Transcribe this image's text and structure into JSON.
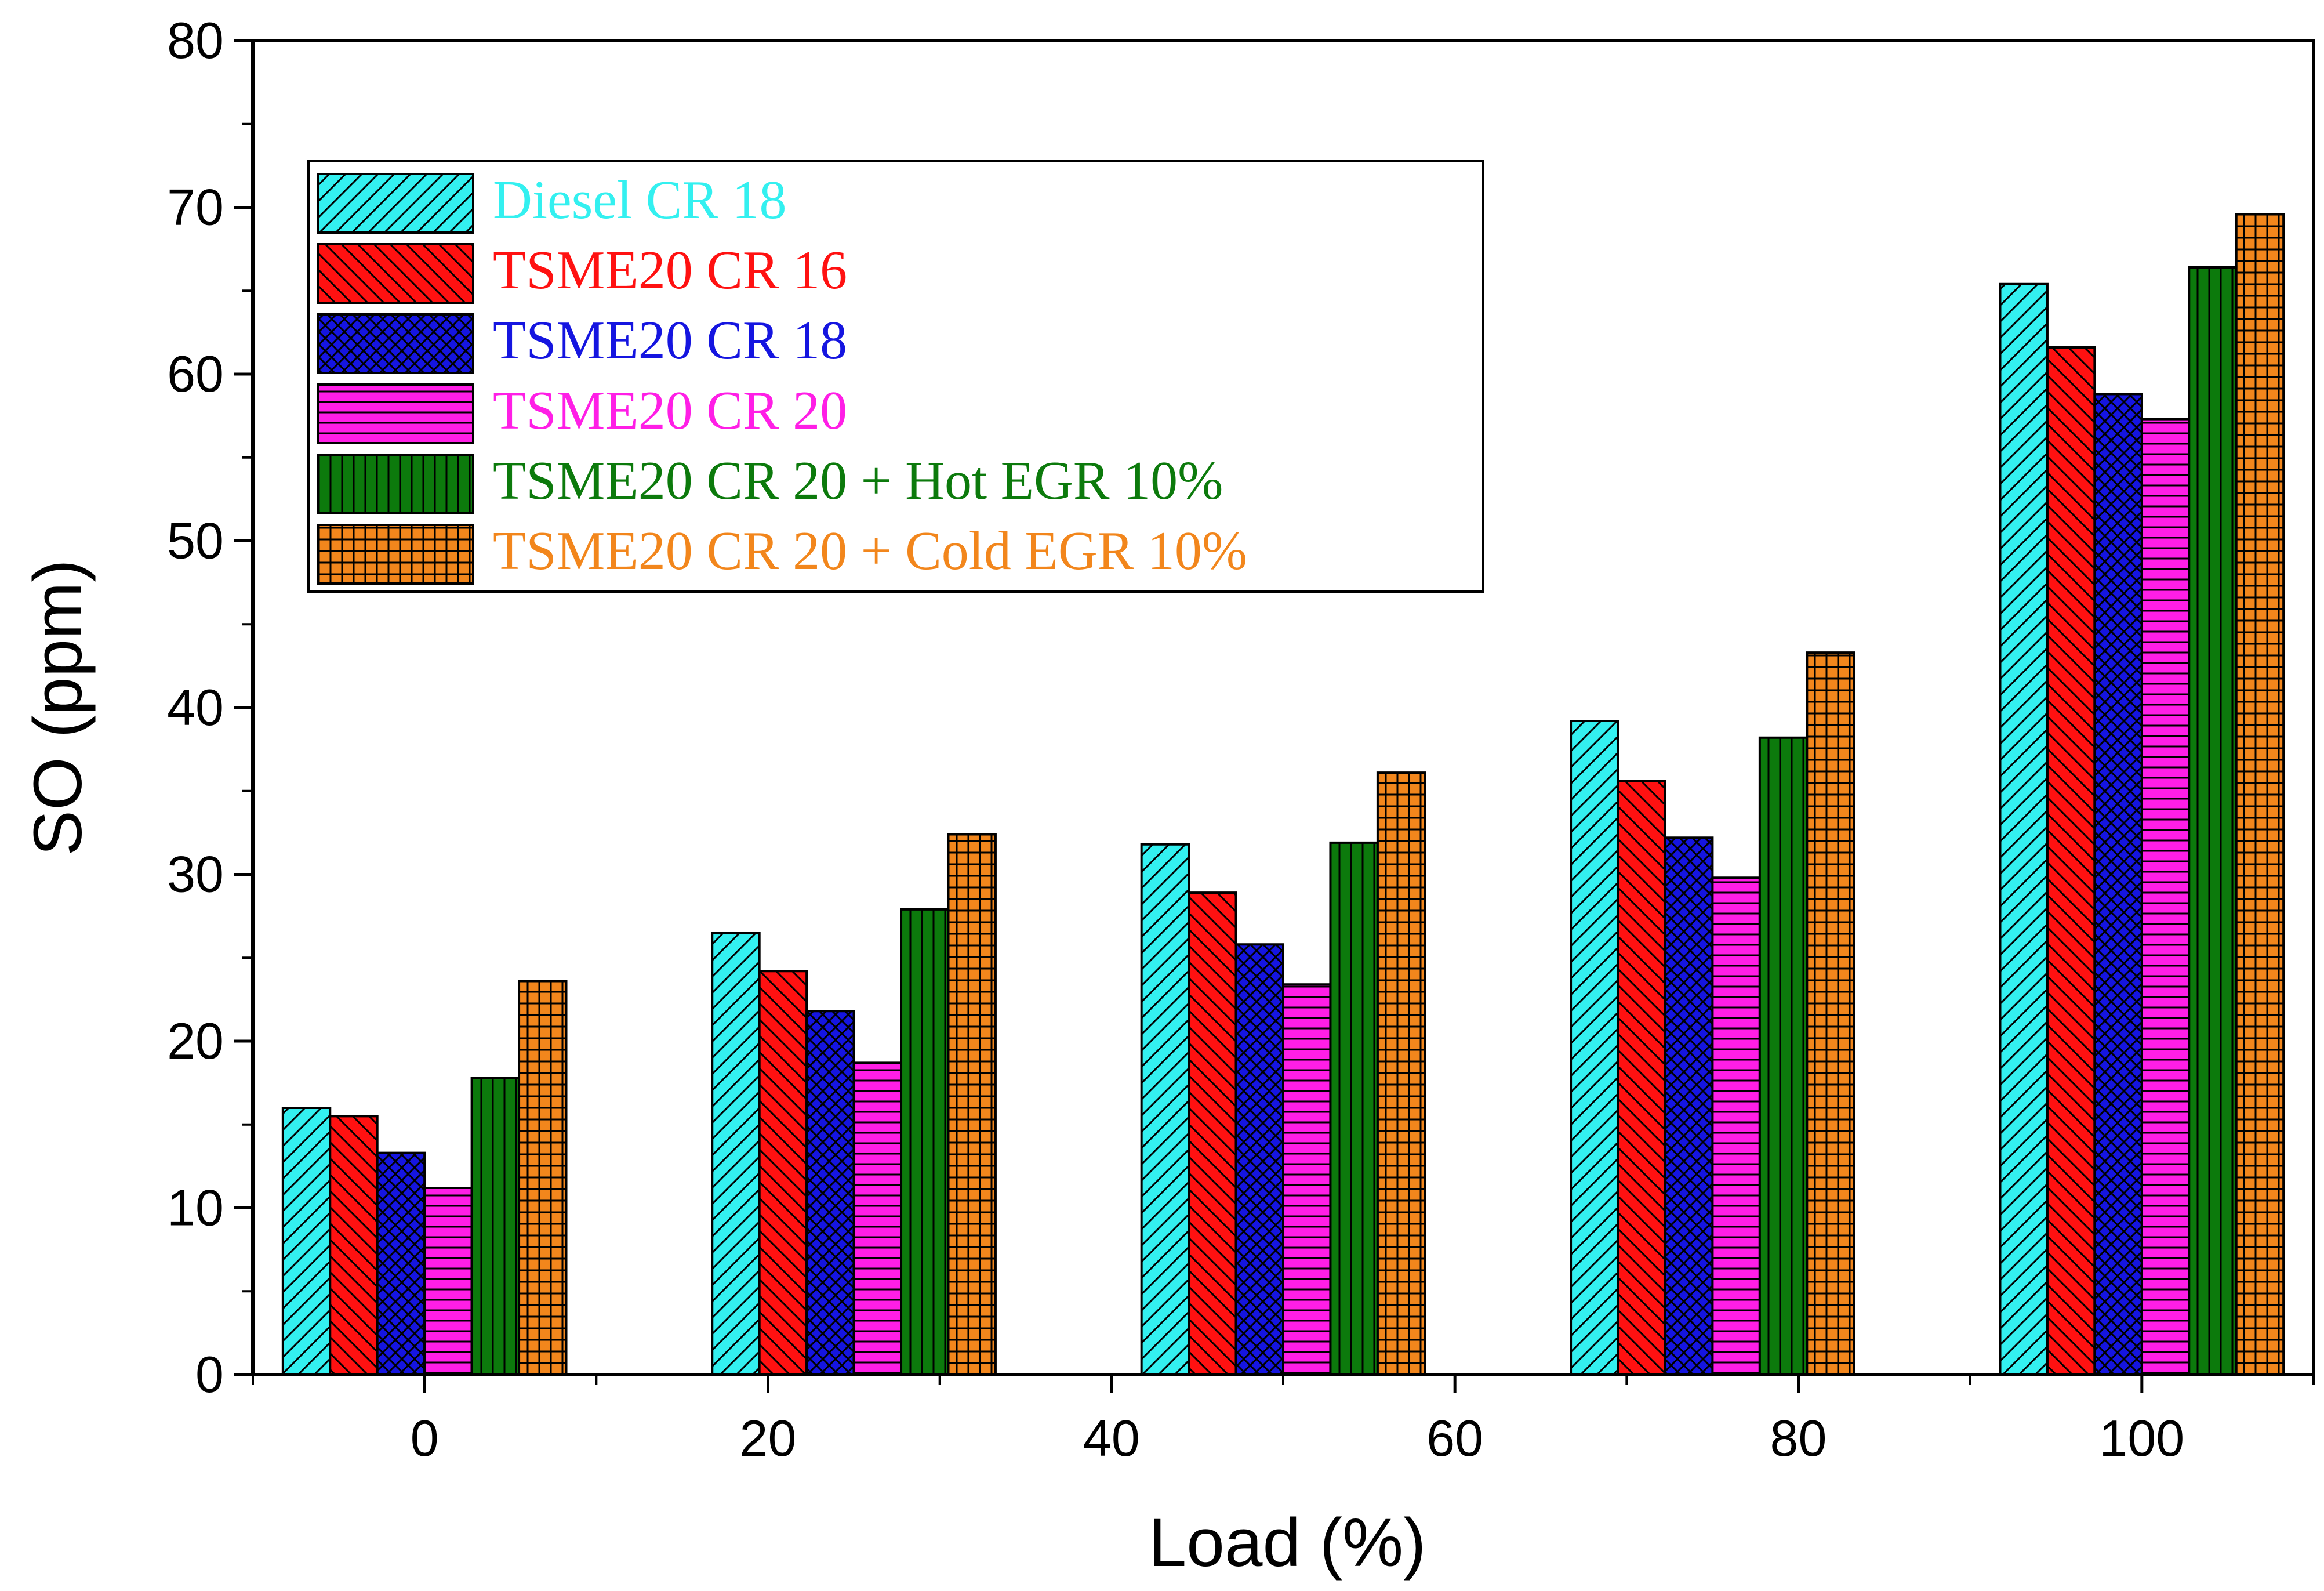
{
  "chart_data": {
    "type": "bar",
    "categories": [
      "0",
      "20",
      "40",
      "60",
      "80",
      "100"
    ],
    "category_positions": [
      0,
      20,
      40,
      60,
      80,
      100
    ],
    "series": [
      {
        "name": "Diesel CR 18",
        "color": "#33f0f0",
        "pattern": "diagonal-forward",
        "values": [
          16.0,
          26.5,
          31.8,
          39.2,
          65.4,
          0
        ]
      },
      {
        "name": "TSME20 CR 16",
        "color": "#ff1111",
        "pattern": "diagonal-back",
        "values": [
          15.5,
          24.2,
          28.9,
          35.6,
          61.6,
          0
        ]
      },
      {
        "name": "TSME20 CR 18",
        "color": "#1515e0",
        "pattern": "crosshatch-diagonal",
        "values": [
          13.3,
          21.8,
          25.8,
          32.2,
          58.8,
          0
        ]
      },
      {
        "name": "TSME20 CR 20",
        "color": "#ff1ee6",
        "pattern": "horizontal",
        "values": [
          11.2,
          18.7,
          23.4,
          29.8,
          57.3,
          0
        ]
      },
      {
        "name": "TSME20 CR 20 + Hot EGR 10%",
        "color": "#0c7a0c",
        "pattern": "vertical",
        "values": [
          17.8,
          27.9,
          31.9,
          38.2,
          66.4,
          0
        ]
      },
      {
        "name": "TSME20 CR 20 + Cold EGR 10%",
        "color": "#f2861c",
        "pattern": "grid",
        "values": [
          23.6,
          32.4,
          36.1,
          43.3,
          69.6,
          0
        ]
      }
    ],
    "bar_groups": [
      {
        "values": [
          16.0,
          15.5,
          13.3,
          11.2,
          17.8,
          23.6
        ]
      },
      {
        "values": [
          26.5,
          24.2,
          21.8,
          18.7,
          27.9,
          32.4
        ]
      },
      {
        "values": [
          31.8,
          28.9,
          25.8,
          23.4,
          31.9,
          36.1
        ]
      },
      {
        "values": [
          39.2,
          35.6,
          32.2,
          29.8,
          38.2,
          43.3
        ]
      },
      {
        "values": [
          65.4,
          61.6,
          58.8,
          57.3,
          66.4,
          69.6
        ]
      }
    ],
    "xlabel": "Load (%)",
    "ylabel": "SO (ppm)",
    "xlim": [
      -10,
      110
    ],
    "ylim": [
      0,
      80
    ],
    "y_ticks": [
      0,
      10,
      20,
      30,
      40,
      50,
      60,
      70,
      80
    ],
    "x_ticks": [
      0,
      20,
      40,
      60,
      80,
      100
    ],
    "grid": false,
    "legend_position": "top-left"
  }
}
